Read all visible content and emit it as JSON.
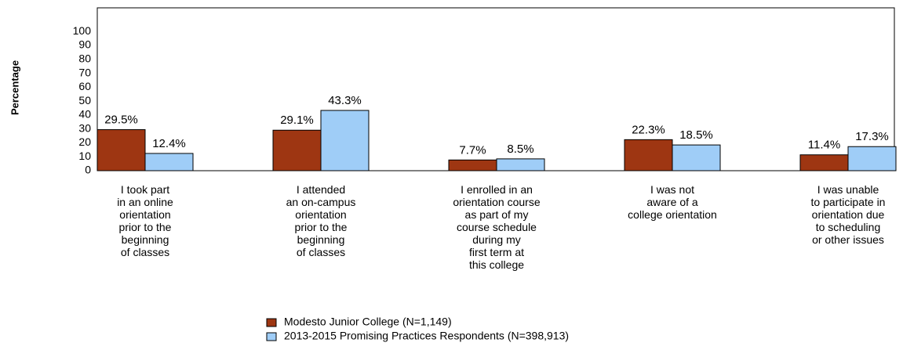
{
  "chart_data": {
    "type": "bar",
    "y_label": "Percentage",
    "categories": [
      [
        "I took part",
        "in an online",
        "orientation",
        "prior to the",
        "beginning",
        "of classes"
      ],
      [
        "I attended",
        "an on-campus",
        "orientation",
        "prior to the",
        "beginning",
        "of classes"
      ],
      [
        "I enrolled in an",
        "orientation course",
        "as part of my",
        "course schedule",
        "during my",
        "first term at",
        "this college"
      ],
      [
        "I was not",
        "aware of a",
        "college orientation"
      ],
      [
        "I was unable",
        "to participate in",
        "orientation due",
        "to scheduling",
        "or other issues"
      ]
    ],
    "series": [
      {
        "name": "Modesto Junior College (N=1,149)",
        "color": "#9e3612",
        "values": [
          29.5,
          29.1,
          7.7,
          22.3,
          11.4
        ],
        "value_labels": [
          "29.5%",
          "29.1%",
          "7.7%",
          "22.3%",
          "11.4%"
        ]
      },
      {
        "name": "2013-2015 Promising Practices Respondents (N=398,913)",
        "color": "#9fcdf7",
        "values": [
          12.4,
          43.3,
          8.5,
          18.5,
          17.3
        ],
        "value_labels": [
          "12.4%",
          "43.3%",
          "8.5%",
          "18.5%",
          "17.3%"
        ]
      }
    ],
    "ylim": [
      0,
      117
    ],
    "yticks": [
      0,
      10,
      20,
      30,
      40,
      50,
      60,
      70,
      80,
      90,
      100
    ],
    "grid": false
  }
}
